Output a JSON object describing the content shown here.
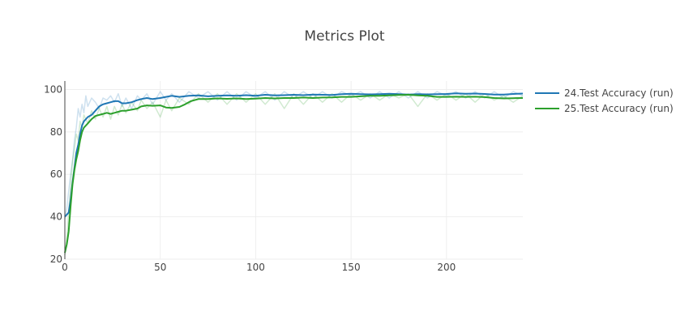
{
  "chart_data": {
    "type": "line",
    "title": "Metrics Plot",
    "xlabel": "",
    "ylabel": "",
    "xlim": [
      0,
      240
    ],
    "ylim": [
      20,
      104
    ],
    "x_ticks": [
      0,
      50,
      100,
      150,
      200
    ],
    "y_ticks": [
      20,
      40,
      60,
      80,
      100
    ],
    "grid": true,
    "legend_position": "right",
    "series": [
      {
        "name": "24.Test Accuracy (run)",
        "color": "#1f77b4",
        "smoothed": [
          [
            0,
            40
          ],
          [
            1,
            41
          ],
          [
            2,
            42
          ],
          [
            3,
            48
          ],
          [
            4,
            56
          ],
          [
            5,
            63
          ],
          [
            6,
            70
          ],
          [
            7,
            74
          ],
          [
            8,
            79
          ],
          [
            9,
            83
          ],
          [
            10,
            85
          ],
          [
            12,
            87
          ],
          [
            14,
            88
          ],
          [
            16,
            90
          ],
          [
            18,
            92
          ],
          [
            20,
            93
          ],
          [
            22,
            93.5
          ],
          [
            24,
            94
          ],
          [
            26,
            94.5
          ],
          [
            28,
            94.5
          ],
          [
            30,
            93.5
          ],
          [
            32,
            93.5
          ],
          [
            35,
            94
          ],
          [
            38,
            95
          ],
          [
            40,
            95.5
          ],
          [
            43,
            96
          ],
          [
            46,
            95.5
          ],
          [
            50,
            96
          ],
          [
            53,
            96.5
          ],
          [
            56,
            97
          ],
          [
            60,
            96.5
          ],
          [
            65,
            97
          ],
          [
            70,
            97.2
          ],
          [
            75,
            96.8
          ],
          [
            80,
            97
          ],
          [
            85,
            97.2
          ],
          [
            90,
            97
          ],
          [
            95,
            97.3
          ],
          [
            100,
            97
          ],
          [
            105,
            97.5
          ],
          [
            110,
            97.2
          ],
          [
            115,
            97.3
          ],
          [
            120,
            97.5
          ],
          [
            125,
            97.3
          ],
          [
            130,
            97.6
          ],
          [
            135,
            97.5
          ],
          [
            140,
            97.4
          ],
          [
            145,
            97.8
          ],
          [
            150,
            98
          ],
          [
            155,
            97.8
          ],
          [
            160,
            97.7
          ],
          [
            165,
            97.8
          ],
          [
            170,
            98
          ],
          [
            175,
            97.8
          ],
          [
            180,
            97.6
          ],
          [
            185,
            97.8
          ],
          [
            190,
            97.7
          ],
          [
            195,
            97.8
          ],
          [
            200,
            97.9
          ],
          [
            205,
            98.2
          ],
          [
            210,
            98
          ],
          [
            215,
            98.1
          ],
          [
            220,
            97.9
          ],
          [
            225,
            97.6
          ],
          [
            230,
            97.6
          ],
          [
            235,
            97.9
          ],
          [
            240,
            98.1
          ]
        ],
        "raw": [
          [
            0,
            39
          ],
          [
            1,
            44
          ],
          [
            2,
            52
          ],
          [
            3,
            60
          ],
          [
            4,
            66
          ],
          [
            5,
            76
          ],
          [
            6,
            82
          ],
          [
            7,
            91
          ],
          [
            8,
            87
          ],
          [
            9,
            93
          ],
          [
            10,
            89
          ],
          [
            11,
            97
          ],
          [
            12,
            92
          ],
          [
            14,
            96
          ],
          [
            16,
            94
          ],
          [
            18,
            91
          ],
          [
            20,
            96
          ],
          [
            22,
            95
          ],
          [
            24,
            97
          ],
          [
            26,
            94
          ],
          [
            28,
            98
          ],
          [
            30,
            92
          ],
          [
            32,
            96
          ],
          [
            35,
            91
          ],
          [
            38,
            97
          ],
          [
            40,
            95
          ],
          [
            43,
            98
          ],
          [
            46,
            93
          ],
          [
            50,
            99
          ],
          [
            53,
            95
          ],
          [
            56,
            98
          ],
          [
            60,
            94
          ],
          [
            65,
            99
          ],
          [
            70,
            96
          ],
          [
            75,
            99
          ],
          [
            80,
            95
          ],
          [
            85,
            99
          ],
          [
            90,
            95
          ],
          [
            95,
            99
          ],
          [
            100,
            96
          ],
          [
            105,
            99
          ],
          [
            110,
            95
          ],
          [
            115,
            99
          ],
          [
            120,
            96
          ],
          [
            125,
            99
          ],
          [
            130,
            96
          ],
          [
            135,
            99
          ],
          [
            140,
            96
          ],
          [
            145,
            99
          ],
          [
            150,
            97
          ],
          [
            155,
            99
          ],
          [
            160,
            96
          ],
          [
            165,
            99
          ],
          [
            170,
            96
          ],
          [
            175,
            99
          ],
          [
            180,
            96
          ],
          [
            185,
            99
          ],
          [
            190,
            96
          ],
          [
            195,
            99
          ],
          [
            200,
            97
          ],
          [
            205,
            99
          ],
          [
            210,
            96
          ],
          [
            215,
            99
          ],
          [
            220,
            96
          ],
          [
            225,
            99
          ],
          [
            230,
            96
          ],
          [
            235,
            99
          ],
          [
            240,
            97
          ]
        ]
      },
      {
        "name": "25.Test Accuracy (run)",
        "color": "#2ca02c",
        "smoothed": [
          [
            0,
            23
          ],
          [
            1,
            27
          ],
          [
            2,
            33
          ],
          [
            3,
            45
          ],
          [
            4,
            55
          ],
          [
            5,
            62
          ],
          [
            6,
            67
          ],
          [
            7,
            71
          ],
          [
            8,
            76
          ],
          [
            9,
            80
          ],
          [
            10,
            82
          ],
          [
            12,
            84
          ],
          [
            14,
            86
          ],
          [
            16,
            87.5
          ],
          [
            18,
            88
          ],
          [
            20,
            88.5
          ],
          [
            22,
            89
          ],
          [
            24,
            88.5
          ],
          [
            26,
            89
          ],
          [
            28,
            89.5
          ],
          [
            30,
            90
          ],
          [
            32,
            90
          ],
          [
            35,
            90.5
          ],
          [
            38,
            91
          ],
          [
            40,
            92
          ],
          [
            43,
            92.5
          ],
          [
            46,
            92.3
          ],
          [
            50,
            92.5
          ],
          [
            53,
            91.5
          ],
          [
            56,
            91.3
          ],
          [
            60,
            91.8
          ],
          [
            63,
            93
          ],
          [
            66,
            94.5
          ],
          [
            70,
            95.5
          ],
          [
            75,
            95.5
          ],
          [
            80,
            95.8
          ],
          [
            85,
            95.6
          ],
          [
            90,
            95.8
          ],
          [
            95,
            95.5
          ],
          [
            100,
            95.7
          ],
          [
            105,
            96
          ],
          [
            110,
            95.8
          ],
          [
            115,
            96
          ],
          [
            120,
            96
          ],
          [
            125,
            96.2
          ],
          [
            130,
            96
          ],
          [
            135,
            96.2
          ],
          [
            140,
            96.3
          ],
          [
            145,
            96.5
          ],
          [
            150,
            96.5
          ],
          [
            155,
            96.8
          ],
          [
            160,
            97
          ],
          [
            165,
            97
          ],
          [
            170,
            97.2
          ],
          [
            175,
            97.4
          ],
          [
            180,
            97.5
          ],
          [
            185,
            97.2
          ],
          [
            190,
            97
          ],
          [
            195,
            96.5
          ],
          [
            200,
            96.5
          ],
          [
            205,
            96.6
          ],
          [
            210,
            96.5
          ],
          [
            215,
            96.6
          ],
          [
            220,
            96.4
          ],
          [
            225,
            96
          ],
          [
            230,
            95.8
          ],
          [
            235,
            95.9
          ],
          [
            240,
            96
          ]
        ],
        "raw": [
          [
            0,
            22
          ],
          [
            1,
            30
          ],
          [
            2,
            42
          ],
          [
            3,
            55
          ],
          [
            4,
            66
          ],
          [
            5,
            72
          ],
          [
            6,
            79
          ],
          [
            7,
            76
          ],
          [
            8,
            85
          ],
          [
            9,
            82
          ],
          [
            10,
            88
          ],
          [
            12,
            84
          ],
          [
            14,
            90
          ],
          [
            16,
            86
          ],
          [
            18,
            91
          ],
          [
            20,
            87
          ],
          [
            22,
            92
          ],
          [
            24,
            86
          ],
          [
            26,
            92
          ],
          [
            28,
            88
          ],
          [
            30,
            93
          ],
          [
            32,
            89
          ],
          [
            35,
            94
          ],
          [
            38,
            90
          ],
          [
            40,
            95
          ],
          [
            43,
            91
          ],
          [
            46,
            94
          ],
          [
            50,
            87
          ],
          [
            53,
            95
          ],
          [
            56,
            90
          ],
          [
            60,
            96
          ],
          [
            65,
            93
          ],
          [
            70,
            98
          ],
          [
            75,
            94
          ],
          [
            80,
            98
          ],
          [
            85,
            93
          ],
          [
            90,
            98
          ],
          [
            95,
            94
          ],
          [
            100,
            98
          ],
          [
            105,
            93
          ],
          [
            110,
            98
          ],
          [
            115,
            91
          ],
          [
            120,
            98
          ],
          [
            125,
            93
          ],
          [
            130,
            98
          ],
          [
            135,
            94
          ],
          [
            140,
            98
          ],
          [
            145,
            94
          ],
          [
            150,
            98
          ],
          [
            155,
            95
          ],
          [
            160,
            98
          ],
          [
            165,
            95
          ],
          [
            170,
            98
          ],
          [
            175,
            96
          ],
          [
            180,
            98
          ],
          [
            185,
            92
          ],
          [
            190,
            98
          ],
          [
            195,
            95
          ],
          [
            200,
            98
          ],
          [
            205,
            95
          ],
          [
            210,
            98
          ],
          [
            215,
            94
          ],
          [
            220,
            98
          ],
          [
            225,
            95
          ],
          [
            230,
            97
          ],
          [
            235,
            94
          ],
          [
            240,
            97
          ]
        ]
      }
    ]
  }
}
